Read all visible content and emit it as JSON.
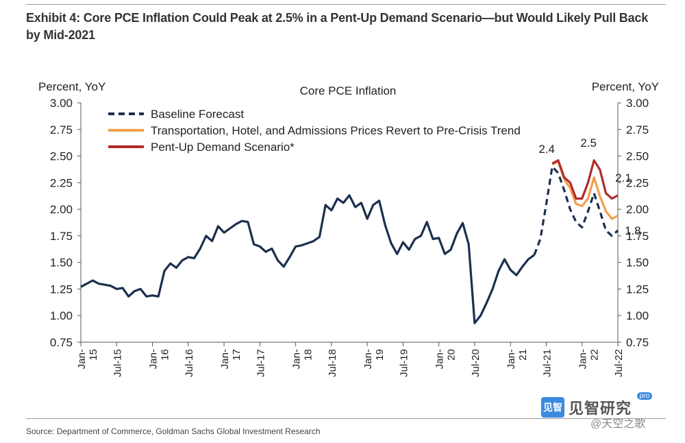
{
  "header": {
    "title": "Exhibit 4: Core PCE Inflation Could Peak at 2.5% in a Pent-Up Demand Scenario—but Would Likely Pull Back by Mid-2021"
  },
  "footer": {
    "source": "Source: Department of Commerce, Goldman Sachs Global Investment Research"
  },
  "watermark": {
    "logo_text": "见智",
    "brand": "见智研究",
    "pro": "pro",
    "handle": "@天空之歌"
  },
  "chart_data": {
    "type": "line",
    "title": "Core PCE Inflation",
    "ylabel_left": "Percent, YoY",
    "ylabel_right": "Percent, YoY",
    "ylim": [
      0.75,
      3.0
    ],
    "y_ticks": [
      "3.00",
      "2.75",
      "2.50",
      "2.25",
      "2.00",
      "1.75",
      "1.50",
      "1.25",
      "1.00",
      "0.75"
    ],
    "x_range": [
      "2015-01",
      "2022-07"
    ],
    "x_tick_labels": [
      {
        "date": "2015-01",
        "lines": [
          "Jan-",
          "15"
        ]
      },
      {
        "date": "2015-07",
        "lines": [
          "Jul-15"
        ]
      },
      {
        "date": "2016-01",
        "lines": [
          "Jan-",
          "16"
        ]
      },
      {
        "date": "2016-07",
        "lines": [
          "Jul-16"
        ]
      },
      {
        "date": "2017-01",
        "lines": [
          "Jan-",
          "17"
        ]
      },
      {
        "date": "2017-07",
        "lines": [
          "Jul-17"
        ]
      },
      {
        "date": "2018-01",
        "lines": [
          "Jan-",
          "18"
        ]
      },
      {
        "date": "2018-07",
        "lines": [
          "Jul-18"
        ]
      },
      {
        "date": "2019-01",
        "lines": [
          "Jan-",
          "19"
        ]
      },
      {
        "date": "2019-07",
        "lines": [
          "Jul-19"
        ]
      },
      {
        "date": "2020-01",
        "lines": [
          "Jan-",
          "20"
        ]
      },
      {
        "date": "2020-07",
        "lines": [
          "Jul-20"
        ]
      },
      {
        "date": "2021-01",
        "lines": [
          "Jan-",
          "21"
        ]
      },
      {
        "date": "2021-07",
        "lines": [
          "Jul-21"
        ]
      },
      {
        "date": "2022-01",
        "lines": [
          "Jan-",
          "22"
        ]
      },
      {
        "date": "2022-07",
        "lines": [
          "Jul-22"
        ]
      }
    ],
    "legend": [
      {
        "name": "Baseline Forecast",
        "color": "#1b2f4e",
        "dash": true
      },
      {
        "name": "Transportation, Hotel, and Admissions Prices Revert to Pre-Crisis Trend",
        "color": "#f0a04b",
        "dash": false
      },
      {
        "name": "Pent-Up Demand Scenario*",
        "color": "#b22a2a",
        "dash": false
      }
    ],
    "legend_position": "top-left",
    "series": [
      {
        "role": "historical",
        "color": "#1b2f4e",
        "dash": false,
        "points": [
          [
            "2015-01",
            1.27
          ],
          [
            "2015-02",
            1.3
          ],
          [
            "2015-03",
            1.33
          ],
          [
            "2015-04",
            1.3
          ],
          [
            "2015-05",
            1.29
          ],
          [
            "2015-06",
            1.28
          ],
          [
            "2015-07",
            1.25
          ],
          [
            "2015-08",
            1.26
          ],
          [
            "2015-09",
            1.18
          ],
          [
            "2015-10",
            1.23
          ],
          [
            "2015-11",
            1.25
          ],
          [
            "2015-12",
            1.18
          ],
          [
            "2016-01",
            1.19
          ],
          [
            "2016-02",
            1.18
          ],
          [
            "2016-03",
            1.42
          ],
          [
            "2016-04",
            1.49
          ],
          [
            "2016-05",
            1.45
          ],
          [
            "2016-06",
            1.52
          ],
          [
            "2016-07",
            1.55
          ],
          [
            "2016-08",
            1.54
          ],
          [
            "2016-09",
            1.63
          ],
          [
            "2016-10",
            1.75
          ],
          [
            "2016-11",
            1.7
          ],
          [
            "2016-12",
            1.84
          ],
          [
            "2017-01",
            1.78
          ],
          [
            "2017-02",
            1.82
          ],
          [
            "2017-03",
            1.86
          ],
          [
            "2017-04",
            1.89
          ],
          [
            "2017-05",
            1.88
          ],
          [
            "2017-06",
            1.67
          ],
          [
            "2017-07",
            1.65
          ],
          [
            "2017-08",
            1.6
          ],
          [
            "2017-09",
            1.63
          ],
          [
            "2017-10",
            1.52
          ],
          [
            "2017-11",
            1.46
          ],
          [
            "2017-12",
            1.55
          ],
          [
            "2018-01",
            1.65
          ],
          [
            "2018-02",
            1.66
          ],
          [
            "2018-03",
            1.68
          ],
          [
            "2018-04",
            1.7
          ],
          [
            "2018-05",
            1.74
          ],
          [
            "2018-06",
            2.04
          ],
          [
            "2018-07",
            1.99
          ],
          [
            "2018-08",
            2.1
          ],
          [
            "2018-09",
            2.06
          ],
          [
            "2018-10",
            2.13
          ],
          [
            "2018-11",
            2.02
          ],
          [
            "2018-12",
            2.06
          ],
          [
            "2019-01",
            1.91
          ],
          [
            "2019-02",
            2.04
          ],
          [
            "2019-03",
            2.08
          ],
          [
            "2019-04",
            1.85
          ],
          [
            "2019-05",
            1.68
          ],
          [
            "2019-06",
            1.58
          ],
          [
            "2019-07",
            1.69
          ],
          [
            "2019-08",
            1.62
          ],
          [
            "2019-09",
            1.72
          ],
          [
            "2019-10",
            1.75
          ],
          [
            "2019-11",
            1.88
          ],
          [
            "2019-12",
            1.72
          ],
          [
            "2020-01",
            1.73
          ],
          [
            "2020-02",
            1.58
          ],
          [
            "2020-03",
            1.62
          ],
          [
            "2020-04",
            1.77
          ],
          [
            "2020-05",
            1.87
          ],
          [
            "2020-06",
            1.67
          ],
          [
            "2020-07",
            0.93
          ],
          [
            "2020-08",
            1.0
          ],
          [
            "2020-09",
            1.12
          ],
          [
            "2020-10",
            1.25
          ],
          [
            "2020-11",
            1.42
          ],
          [
            "2020-12",
            1.53
          ],
          [
            "2021-01",
            1.43
          ],
          [
            "2021-02",
            1.38
          ],
          [
            "2021-03",
            1.46
          ],
          [
            "2021-04",
            1.53
          ],
          [
            "2021-05",
            1.57
          ]
        ]
      },
      {
        "role": "baseline",
        "name": "Baseline Forecast",
        "color": "#1b2f4e",
        "dash": true,
        "points": [
          [
            "2021-05",
            1.57
          ],
          [
            "2021-06",
            1.72
          ],
          [
            "2021-07",
            2.05
          ],
          [
            "2021-08",
            2.4
          ],
          [
            "2021-09",
            2.34
          ],
          [
            "2021-10",
            2.18
          ],
          [
            "2021-11",
            2.0
          ],
          [
            "2021-12",
            1.88
          ],
          [
            "2022-01",
            1.83
          ],
          [
            "2022-02",
            1.98
          ],
          [
            "2022-03",
            2.15
          ],
          [
            "2022-04",
            1.98
          ],
          [
            "2022-05",
            1.8
          ],
          [
            "2022-06",
            1.75
          ],
          [
            "2022-07",
            1.8
          ]
        ]
      },
      {
        "role": "transport",
        "name": "Transportation, Hotel, and Admissions Prices Revert to Pre-Crisis Trend",
        "color": "#f0a04b",
        "dash": false,
        "points": [
          [
            "2021-08",
            2.42
          ],
          [
            "2021-09",
            2.45
          ],
          [
            "2021-10",
            2.28
          ],
          [
            "2021-11",
            2.2
          ],
          [
            "2021-12",
            2.05
          ],
          [
            "2022-01",
            2.03
          ],
          [
            "2022-02",
            2.1
          ],
          [
            "2022-03",
            2.3
          ],
          [
            "2022-04",
            2.12
          ],
          [
            "2022-05",
            1.98
          ],
          [
            "2022-06",
            1.91
          ],
          [
            "2022-07",
            1.94
          ]
        ]
      },
      {
        "role": "pentup",
        "name": "Pent-Up Demand Scenario*",
        "color": "#b22a2a",
        "dash": false,
        "points": [
          [
            "2021-08",
            2.43
          ],
          [
            "2021-09",
            2.46
          ],
          [
            "2021-10",
            2.3
          ],
          [
            "2021-11",
            2.25
          ],
          [
            "2021-12",
            2.1
          ],
          [
            "2022-01",
            2.1
          ],
          [
            "2022-02",
            2.25
          ],
          [
            "2022-03",
            2.46
          ],
          [
            "2022-04",
            2.37
          ],
          [
            "2022-05",
            2.15
          ],
          [
            "2022-06",
            2.1
          ],
          [
            "2022-07",
            2.13
          ]
        ]
      }
    ],
    "annotations": [
      {
        "text": "2.4",
        "date": "2021-08",
        "value": 2.4,
        "anchor": "above"
      },
      {
        "text": "2.5",
        "date": "2022-03",
        "value": 2.46,
        "anchor": "above"
      },
      {
        "text": "2.1",
        "date": "2022-07",
        "value": 2.13,
        "anchor": "above"
      },
      {
        "text": "1.8",
        "date": "2022-07",
        "value": 1.8,
        "anchor": "right"
      }
    ]
  }
}
